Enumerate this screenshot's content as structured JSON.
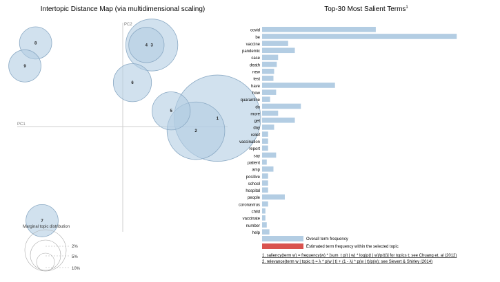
{
  "left_title": "Intertopic Distance Map (via multidimensional scaling)",
  "right_title": "Top-30 Most Salient Terms",
  "right_title_sup": "1",
  "axis_labels": {
    "pc1": "PC1",
    "pc2": "PC2"
  },
  "marginal": {
    "title": "Marginal topic distribution",
    "labels": [
      "2%",
      "5%",
      "10%"
    ]
  },
  "legend": {
    "overall": "Overall term frequency",
    "estimated": "Estimated term frequency within the selected topic",
    "overall_color": "#b3cde3",
    "estimated_color": "#d9534f"
  },
  "footnotes": [
    "1. saliency(term w) = frequency(w) * [sum_t p(t | w) * log(p(t | w)/p(t))] for topics t; see Chuang et. al (2012)",
    "2. relevance(term w | topic t) = λ * p(w | t) + (1 - λ) * p(w | t)/p(w); see Sievert & Shirley (2014)"
  ],
  "chart_data": [
    {
      "type": "scatter",
      "title": "Intertopic Distance Map (via multidimensional scaling)",
      "xlabel": "PC1",
      "ylabel": "PC2",
      "xlim": [
        -1,
        1
      ],
      "ylim": [
        -1,
        1
      ],
      "bubble_color": "#b3cde3",
      "points": [
        {
          "topic": "1",
          "x": 0.88,
          "y": 0.08,
          "size_pct": 18.0
        },
        {
          "topic": "2",
          "x": 0.68,
          "y": -0.04,
          "size_pct": 8.0
        },
        {
          "topic": "3",
          "x": 0.27,
          "y": 0.78,
          "size_pct": 6.5
        },
        {
          "topic": "4",
          "x": 0.22,
          "y": 0.78,
          "size_pct": 3.0
        },
        {
          "topic": "5",
          "x": 0.45,
          "y": 0.15,
          "size_pct": 3.5
        },
        {
          "topic": "6",
          "x": 0.09,
          "y": 0.42,
          "size_pct": 3.5
        },
        {
          "topic": "7",
          "x": -0.75,
          "y": -0.9,
          "size_pct": 2.5
        },
        {
          "topic": "8",
          "x": -0.81,
          "y": 0.8,
          "size_pct": 2.5
        },
        {
          "topic": "9",
          "x": -0.91,
          "y": 0.58,
          "size_pct": 2.5
        }
      ]
    },
    {
      "type": "bar",
      "orientation": "horizontal",
      "title": "Top-30 Most Salient Terms",
      "series": [
        {
          "name": "Overall term frequency",
          "color": "#b3cde3"
        }
      ],
      "categories": [
        "covid",
        "be",
        "vaccine",
        "pandemic",
        "case",
        "death",
        "new",
        "test",
        "have",
        "how",
        "quarantine",
        "do",
        "more",
        "get",
        "day",
        "relief",
        "vaccination",
        "report",
        "say",
        "patient",
        "amp",
        "positive",
        "school",
        "hospital",
        "people",
        "coronavirus",
        "child",
        "vaccinate",
        "number",
        "help"
      ],
      "values": [
        170,
        291,
        39,
        49,
        24,
        22,
        18,
        17,
        109,
        21,
        12,
        58,
        24,
        49,
        18,
        9,
        9,
        9,
        21,
        7,
        17,
        9,
        9,
        9,
        34,
        9,
        5,
        5,
        7,
        11
      ],
      "xlim": [
        0,
        300
      ]
    }
  ]
}
